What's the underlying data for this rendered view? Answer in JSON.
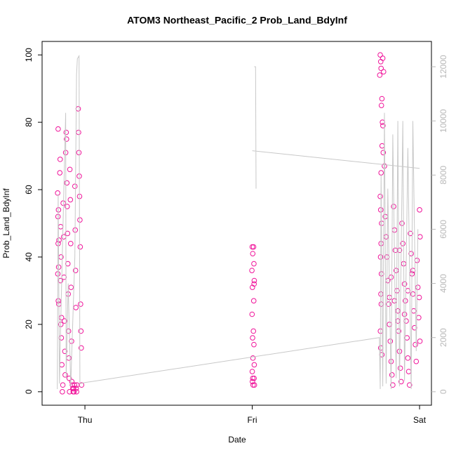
{
  "chart_data": {
    "type": "scatter",
    "title": "ATOM3 Northeast_Pacific_2 Prob_Land_BdyInf",
    "x_label": "Date",
    "y_label": "Prob_Land_BdyInf",
    "xlim": [
      -0.256,
      2.071
    ],
    "xticks": [
      {
        "value": 0,
        "label": "Thu"
      },
      {
        "value": 1,
        "label": "Fri"
      },
      {
        "value": 2,
        "label": "Sat"
      }
    ],
    "ylim": [
      -4,
      104
    ],
    "yticks": [
      0,
      20,
      40,
      60,
      80,
      100
    ],
    "y2lim": [
      -497,
      12934
    ],
    "y2ticks": [
      0,
      2000,
      4000,
      6000,
      8000,
      10000,
      12000
    ],
    "grid": false,
    "series": [
      {
        "color": "#f0139a",
        "x": [
          -0.16,
          -0.163,
          -0.158,
          -0.161,
          -0.155,
          -0.16,
          -0.157,
          -0.162,
          -0.159,
          -0.156,
          -0.15,
          -0.148,
          -0.145,
          -0.143,
          -0.146,
          -0.14,
          -0.144,
          -0.141,
          -0.138,
          -0.135,
          -0.132,
          -0.13,
          -0.127,
          -0.125,
          -0.122,
          -0.12,
          -0.118,
          -0.115,
          -0.112,
          -0.11,
          -0.108,
          -0.106,
          -0.104,
          -0.102,
          -0.1,
          -0.098,
          -0.096,
          -0.094,
          -0.092,
          -0.09,
          -0.087,
          -0.085,
          -0.083,
          -0.08,
          -0.078,
          -0.075,
          -0.072,
          -0.07,
          -0.068,
          -0.065,
          -0.062,
          -0.06,
          -0.058,
          -0.056,
          -0.054,
          -0.052,
          -0.05,
          -0.048,
          -0.04,
          -0.038,
          -0.036,
          -0.034,
          -0.032,
          -0.03,
          -0.028,
          -0.026,
          -0.024,
          -0.022,
          -0.02,
          1.0,
          1.003,
          0.998,
          1.001,
          0.999,
          1.002,
          1.004,
          1.0,
          1.003,
          1.001,
          1.005,
          1.008,
          1.01,
          1.012,
          1.011,
          1.009,
          1.007,
          1.01,
          1.012,
          1.011,
          1.013,
          1.765,
          1.768,
          1.77,
          1.762,
          1.78,
          1.785,
          1.775,
          1.772,
          1.778,
          1.781,
          1.776,
          1.783,
          1.77,
          1.765,
          1.768,
          1.773,
          1.77,
          1.767,
          1.772,
          1.769,
          1.771,
          1.766,
          1.768,
          1.775,
          1.79,
          1.795,
          1.8,
          1.805,
          1.81,
          1.815,
          1.82,
          1.825,
          1.83,
          1.835,
          1.84,
          1.845,
          1.85,
          1.855,
          1.86,
          1.865,
          1.87,
          1.875,
          1.88,
          1.885,
          1.89,
          1.895,
          1.9,
          1.905,
          1.91,
          1.915,
          1.92,
          1.925,
          1.93,
          1.935,
          1.94,
          1.945,
          1.95,
          1.955,
          1.96,
          1.965,
          1.97,
          1.975,
          1.98,
          1.985,
          1.99,
          1.995,
          2.0,
          2.003,
          2.002,
          1.998,
          1.83,
          1.85,
          1.87,
          1.91,
          1.93,
          1.96,
          1.88,
          1.82
        ],
        "values": [
          78,
          59,
          54,
          52,
          45,
          44,
          37,
          35,
          27,
          26,
          65,
          69,
          49,
          40,
          33,
          22,
          20,
          16,
          8,
          0,
          2,
          56,
          46,
          34,
          21,
          12,
          5,
          71,
          77,
          75,
          62,
          55,
          47,
          38,
          29,
          18,
          10,
          4,
          0,
          66,
          57,
          44,
          31,
          15,
          3,
          2,
          1,
          0,
          1,
          0,
          2,
          61,
          48,
          36,
          25,
          1,
          0,
          2,
          84,
          77,
          71,
          64,
          58,
          51,
          43,
          26,
          18,
          13,
          2,
          43,
          41,
          36,
          31,
          23,
          16,
          10,
          6,
          4,
          3,
          2,
          43,
          38,
          33,
          32,
          27,
          18,
          14,
          8,
          4,
          2,
          100,
          98,
          96,
          94,
          99,
          95,
          87,
          85,
          80,
          79,
          73,
          71,
          65,
          58,
          54,
          50,
          44,
          40,
          35,
          29,
          26,
          18,
          13,
          11,
          67,
          52,
          46,
          40,
          33,
          26,
          20,
          15,
          9,
          5,
          2,
          55,
          48,
          42,
          36,
          30,
          24,
          18,
          12,
          7,
          3,
          50,
          44,
          38,
          32,
          27,
          21,
          16,
          10,
          6,
          2,
          47,
          41,
          35,
          29,
          24,
          19,
          14,
          9,
          39,
          31,
          22,
          54,
          46,
          15,
          28,
          34,
          27,
          21,
          23,
          30,
          36,
          42,
          28
        ]
      },
      {
        "color": "#c8c8c8",
        "axis": "y2",
        "line": true,
        "x": [
          -0.165,
          -0.16,
          -0.152,
          -0.145,
          -0.115,
          -0.112,
          -0.1,
          -0.085,
          -0.06,
          -0.05,
          -0.045,
          -0.035,
          -0.03,
          -0.01,
          1.76,
          1.765,
          1.77,
          1.78,
          1.79,
          1.8,
          1.81,
          1.83,
          1.84,
          1.86,
          1.87,
          1.88,
          1.9,
          1.91,
          1.93,
          1.95,
          1.96,
          1.98,
          1.99,
          null,
          1.012,
          1.02,
          1.023,
          null,
          1.0,
          2.0
        ],
        "values": [
          100,
          7300,
          300,
          2500,
          10300,
          500,
          4000,
          200,
          5000,
          11700,
          12300,
          12400,
          300,
          330,
          2000,
          100,
          8000,
          200,
          10300,
          300,
          7500,
          100,
          9500,
          500,
          10000,
          200,
          10000,
          400,
          9000,
          100,
          10000,
          1500,
          6000,
          null,
          12000,
          12000,
          7500,
          null,
          8900,
          8250
        ]
      }
    ]
  }
}
